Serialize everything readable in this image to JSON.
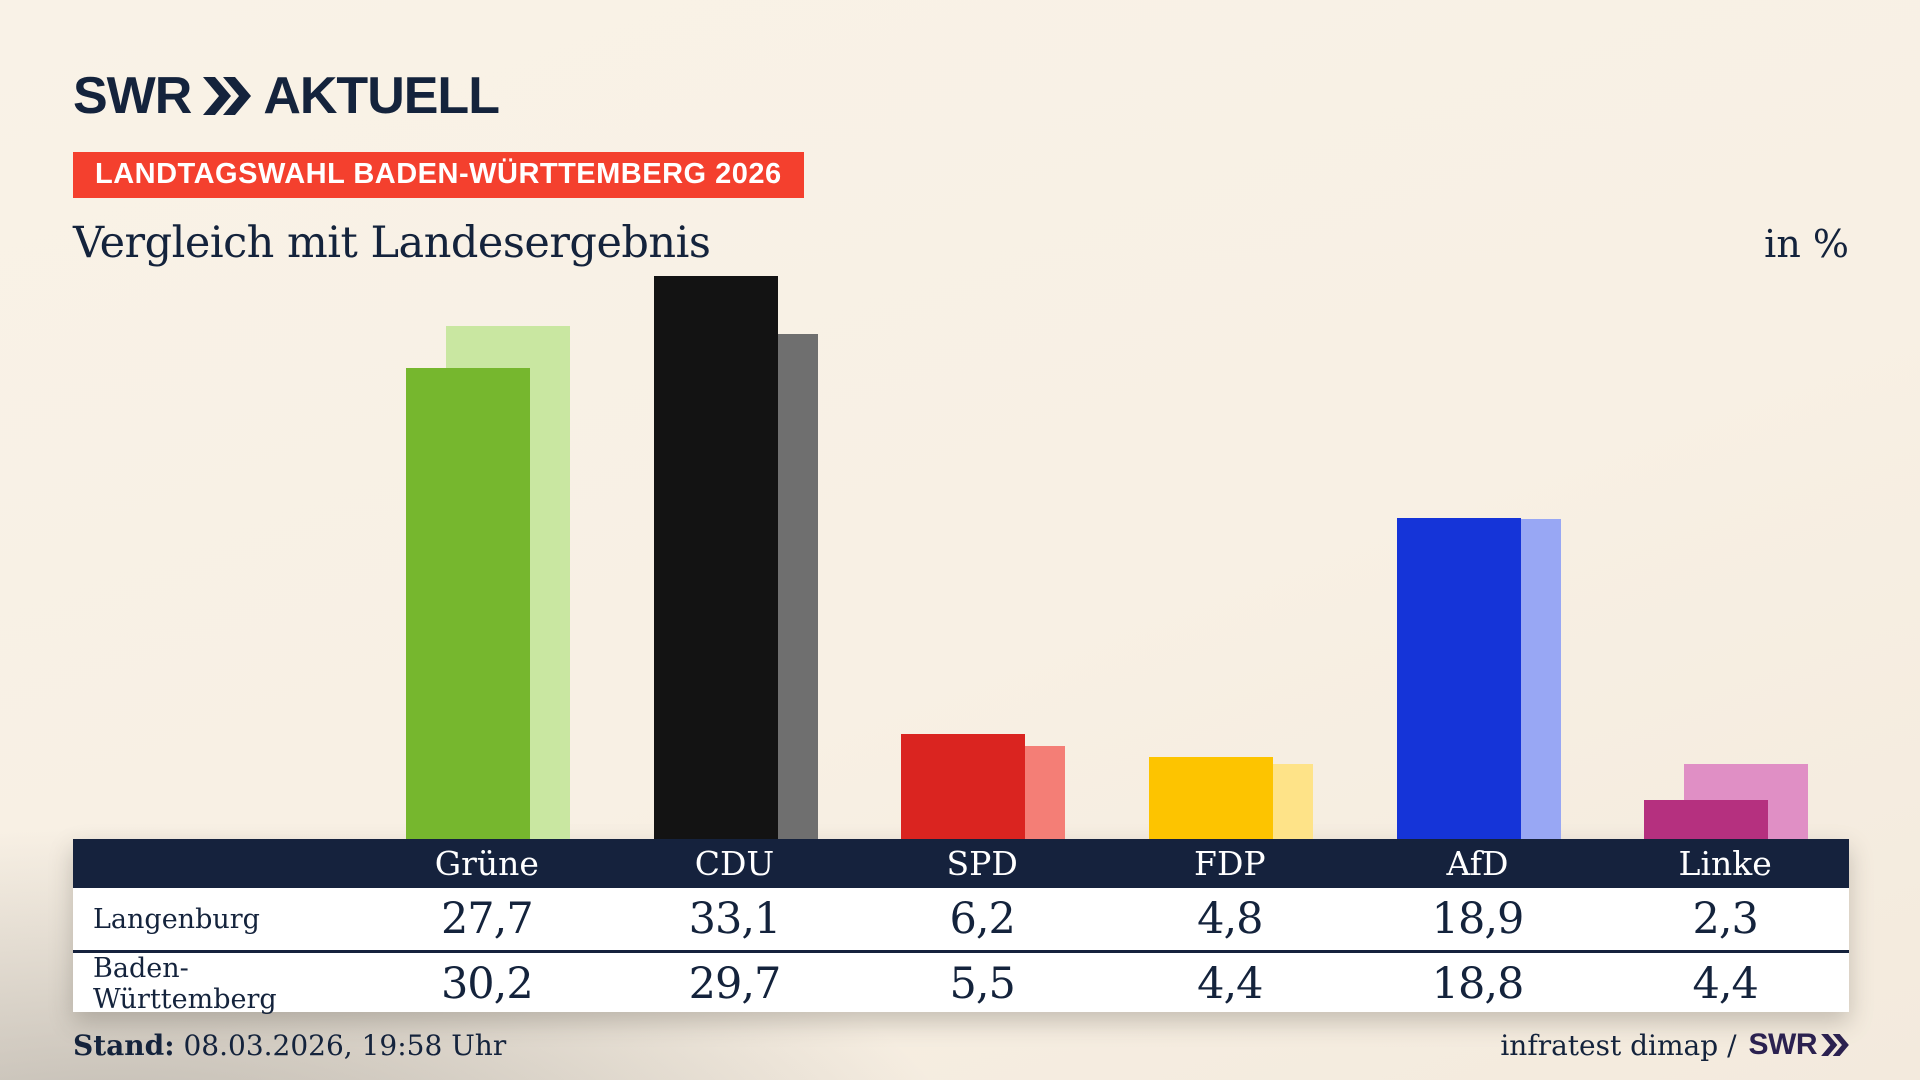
{
  "brand": {
    "swr": "SWR",
    "aktuell": "AKTUELL"
  },
  "banner": {
    "text": "LANDTAGSWAHL BADEN-WÜRTTEMBERG 2026",
    "bg": "#f4402e"
  },
  "title": "Vergleich mit Landesergebnis",
  "unit_label": "in %",
  "chart_data": {
    "type": "bar",
    "categories": [
      "Grüne",
      "CDU",
      "SPD",
      "FDP",
      "AfD",
      "Linke"
    ],
    "series": [
      {
        "name": "Langenburg",
        "values": [
          27.7,
          33.1,
          6.2,
          4.8,
          18.9,
          2.3
        ]
      },
      {
        "name": "Baden-Württemberg",
        "values": [
          30.2,
          29.7,
          5.5,
          4.4,
          18.8,
          4.4
        ]
      }
    ],
    "colors": {
      "front": [
        "#76b72e",
        "#131313",
        "#da2420",
        "#fdc400",
        "#1534d8",
        "#b5307f"
      ],
      "back": [
        "#c9e7a1",
        "#6f6f6f",
        "#f47e76",
        "#fee388",
        "#98a7f4",
        "#e08fc5"
      ]
    },
    "unit": "%",
    "ylim": [
      0,
      35
    ],
    "grid": false,
    "legend_position": "table-below",
    "title": "Vergleich mit Landesergebnis"
  },
  "table": {
    "rows": [
      {
        "label": "Langenburg",
        "values": [
          "27,7",
          "33,1",
          "6,2",
          "4,8",
          "18,9",
          "2,3"
        ]
      },
      {
        "label": "Baden-Württemberg",
        "values": [
          "30,2",
          "29,7",
          "5,5",
          "4,4",
          "18,8",
          "4,4"
        ]
      }
    ]
  },
  "footer": {
    "stand_label": "Stand:",
    "stand_value": "08.03.2026, 19:58 Uhr",
    "source": "infratest dimap /",
    "source_logo": "SWR"
  },
  "accent_colors": {
    "navy": "#14233c",
    "table_header_bg": "#15223d",
    "banner_red": "#f4402e",
    "swr_violet": "#2b2150"
  }
}
